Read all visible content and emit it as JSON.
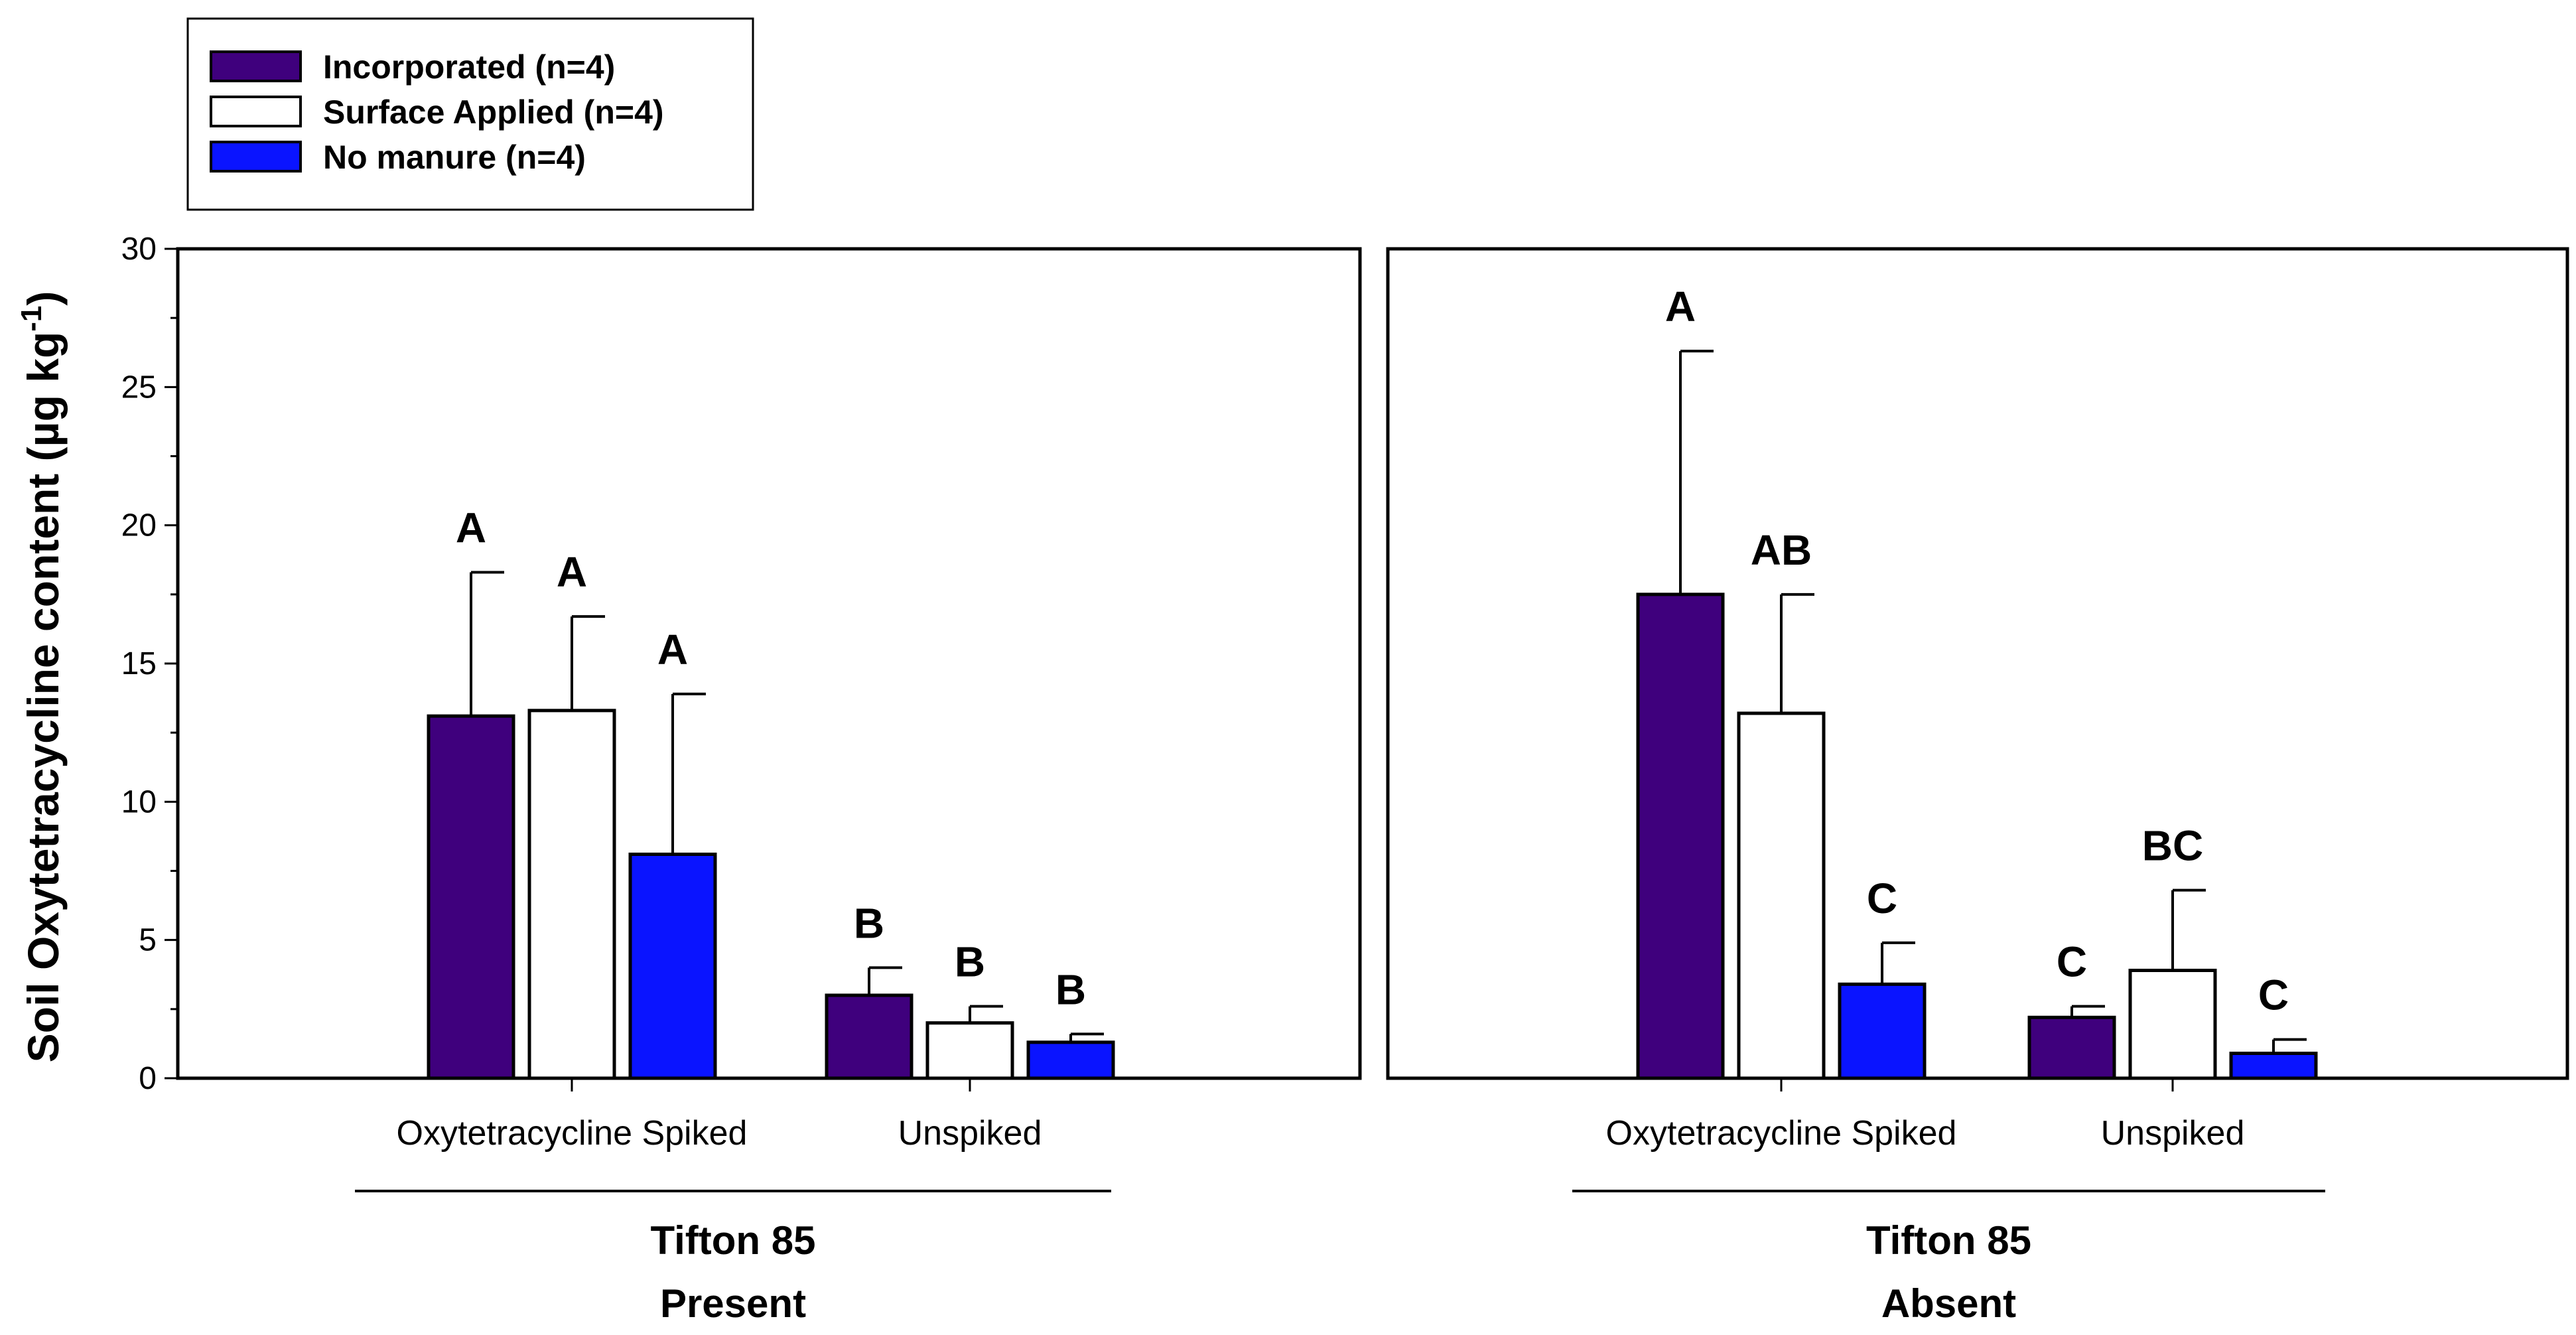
{
  "chart_data": {
    "type": "bar",
    "ylabel": "Soil Oxytetracycline content (µg kg",
    "ylabel_superscript": "-1",
    "ylabel_close": ")",
    "ylim": [
      0,
      30
    ],
    "yticks": [
      0,
      5,
      10,
      15,
      20,
      25,
      30
    ],
    "legend": {
      "position": "top-left",
      "entries": [
        {
          "name": "Incorporated (n=4)",
          "color": "#3f007d"
        },
        {
          "name": "Surface Applied (n=4)",
          "color": "#ffffff"
        },
        {
          "name": "No manure (n=4)",
          "color": "#0a14ff"
        }
      ]
    },
    "panels": [
      {
        "group_label": "Tifton 85",
        "group_sublabel": "Present",
        "categories": [
          "Oxytetracycline Spiked",
          "Unspiked"
        ],
        "series": [
          {
            "name": "Incorporated (n=4)",
            "values": [
              13.1,
              3.0
            ],
            "errors": [
              5.2,
              1.0
            ],
            "letters": [
              "A",
              "B"
            ]
          },
          {
            "name": "Surface Applied (n=4)",
            "values": [
              13.3,
              2.0
            ],
            "errors": [
              3.4,
              0.6
            ],
            "letters": [
              "A",
              "B"
            ]
          },
          {
            "name": "No manure (n=4)",
            "values": [
              8.1,
              1.3
            ],
            "errors": [
              5.8,
              0.3
            ],
            "letters": [
              "A",
              "B"
            ]
          }
        ]
      },
      {
        "group_label": "Tifton 85",
        "group_sublabel": "Absent",
        "categories": [
          "Oxytetracycline Spiked",
          "Unspiked"
        ],
        "series": [
          {
            "name": "Incorporated (n=4)",
            "values": [
              17.5,
              2.2
            ],
            "errors": [
              8.8,
              0.4
            ],
            "letters": [
              "A",
              "C"
            ]
          },
          {
            "name": "Surface Applied (n=4)",
            "values": [
              13.2,
              3.9
            ],
            "errors": [
              4.3,
              2.9
            ],
            "letters": [
              "AB",
              "BC"
            ]
          },
          {
            "name": "No manure (n=4)",
            "values": [
              3.4,
              0.9
            ],
            "errors": [
              1.5,
              0.5
            ],
            "letters": [
              "C",
              "C"
            ]
          }
        ]
      }
    ]
  }
}
